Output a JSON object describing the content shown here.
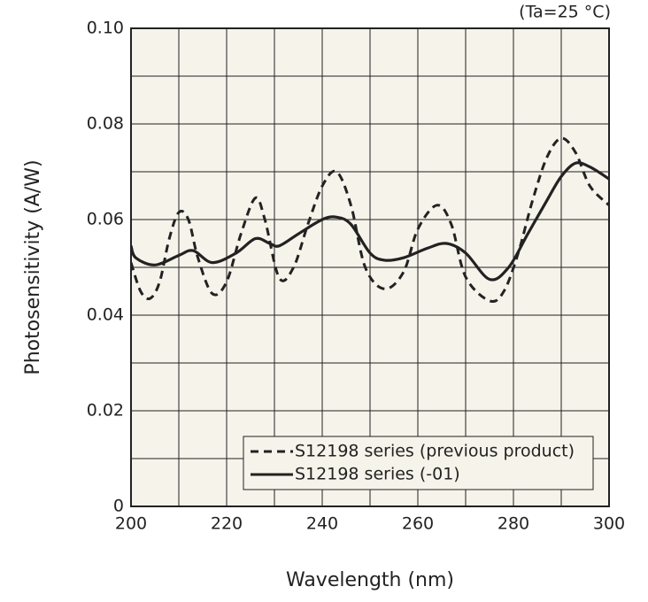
{
  "chart_data": {
    "type": "line",
    "annotation": "(Ta=25 °C)",
    "xlabel": "Wavelength (nm)",
    "ylabel": "Photosensitivity (A/W)",
    "xlim": [
      200,
      300
    ],
    "xticks": [
      200,
      220,
      240,
      260,
      280,
      300
    ],
    "xminorticks": [
      210,
      230,
      250,
      270,
      290
    ],
    "ylim": [
      0,
      0.1
    ],
    "yticks": [
      0,
      0.02,
      0.04,
      0.06,
      0.08,
      {
        "value": 0.1,
        "label": "0.10"
      }
    ],
    "yminorticks": [
      0.01,
      0.03,
      0.05,
      0.07,
      0.09
    ],
    "grid": true,
    "legend": "lower right",
    "series": [
      {
        "name": "S12198 series (previous product)",
        "color": "#222222",
        "dash": "dashed",
        "x": [
          200,
          202,
          204,
          206,
          208,
          210,
          212,
          214,
          217,
          220,
          223,
          226,
          228,
          231,
          234,
          237,
          240,
          243,
          246,
          249,
          253,
          257,
          260,
          264,
          267,
          270,
          275,
          278,
          281,
          284,
          287,
          290,
          293,
          296,
          300
        ],
        "values": [
          0.051,
          0.045,
          0.0435,
          0.047,
          0.056,
          0.0615,
          0.06,
          0.052,
          0.0445,
          0.047,
          0.057,
          0.0645,
          0.06,
          0.0478,
          0.05,
          0.059,
          0.067,
          0.07,
          0.063,
          0.05,
          0.0455,
          0.049,
          0.058,
          0.063,
          0.059,
          0.048,
          0.043,
          0.045,
          0.053,
          0.064,
          0.073,
          0.077,
          0.074,
          0.067,
          0.063
        ]
      },
      {
        "name": "S12198 series (-01)",
        "color": "#222222",
        "dash": "solid",
        "x": [
          200,
          201,
          205,
          210,
          213,
          217,
          222,
          226,
          229,
          231,
          235,
          240,
          243,
          246,
          250,
          253,
          257,
          262,
          266,
          270,
          275,
          279,
          283,
          287,
          290,
          293,
          296,
          300
        ],
        "values": [
          0.0545,
          0.052,
          0.0505,
          0.0525,
          0.0535,
          0.051,
          0.053,
          0.056,
          0.055,
          0.0545,
          0.057,
          0.06,
          0.0605,
          0.059,
          0.053,
          0.0515,
          0.052,
          0.054,
          0.055,
          0.053,
          0.0475,
          0.05,
          0.057,
          0.064,
          0.069,
          0.0718,
          0.071,
          0.0685
        ]
      }
    ]
  }
}
